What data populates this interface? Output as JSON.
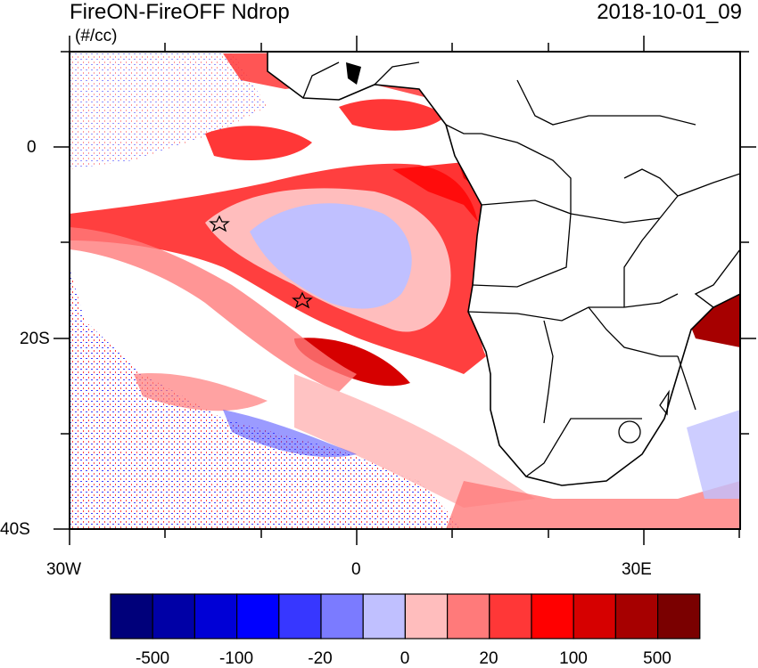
{
  "header": {
    "title": "FireON-FireOFF Ndrop",
    "units": "(#/cc)",
    "timestamp": "2018-10-01_09"
  },
  "map": {
    "region": "Southeast Atlantic / Southern Africa",
    "lon_range": [
      -30,
      40
    ],
    "lat_range": [
      -40,
      10
    ],
    "x_tick_labels": [
      "30W",
      "0",
      "30E"
    ],
    "y_tick_labels": [
      "0",
      "20S",
      "40S"
    ],
    "markers": [
      {
        "name": "star",
        "lon": -14.5,
        "lat": -8.0
      },
      {
        "name": "star",
        "lon": -5.7,
        "lat": -16.0
      }
    ]
  },
  "colorbar": {
    "labels": [
      "-500",
      "-100",
      "-20",
      "0",
      "20",
      "100",
      "500"
    ],
    "colors": [
      "#00007a",
      "#0000a6",
      "#0000d6",
      "#0000ff",
      "#3737ff",
      "#7b7bff",
      "#c0c0ff",
      "#ffbdbd",
      "#ff7a7a",
      "#ff3737",
      "#ff0000",
      "#d60000",
      "#a60000",
      "#7a0000"
    ]
  }
}
